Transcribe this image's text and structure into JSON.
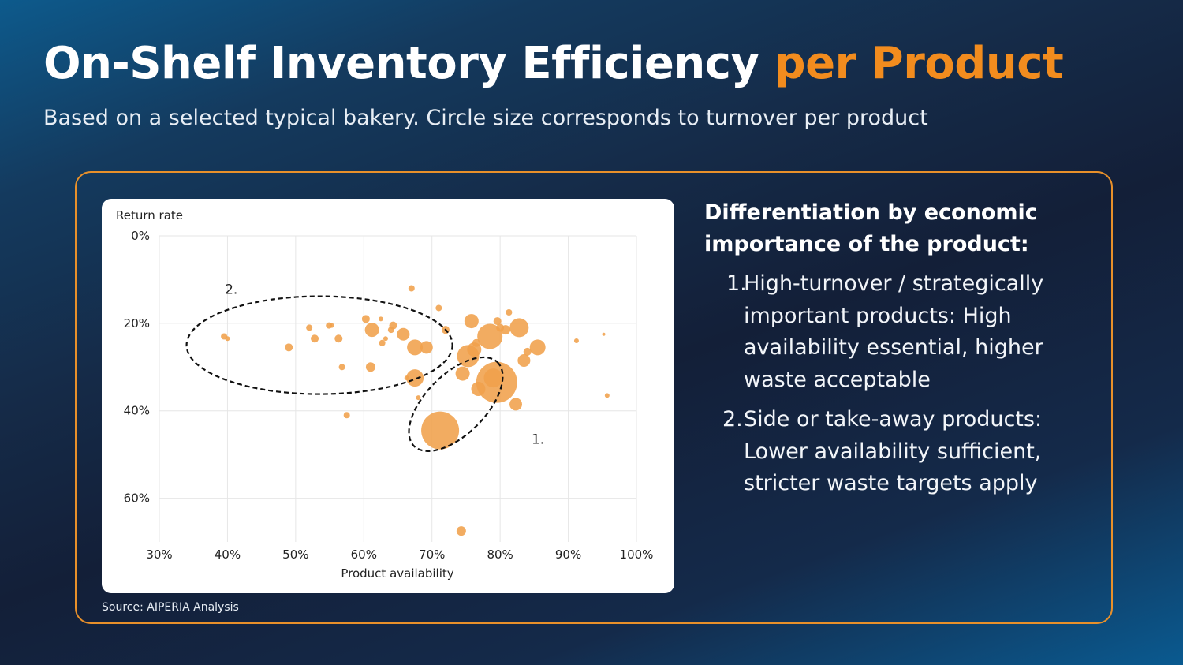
{
  "header": {
    "title_main": "On-Shelf Inventory Efficiency",
    "title_accent": "per Product",
    "subtitle": "Based on a selected typical bakery. Circle size corresponds to turnover per product"
  },
  "colors": {
    "accent": "#f28c1e",
    "bubble": "#f0a04b",
    "frame": "#e8902a"
  },
  "source": "Source: AIPERIA Analysis",
  "panel": {
    "heading": "Differentiation by economic importance of the product:",
    "points": [
      {
        "num": "1.",
        "text": "High-turnover / strategically important products: High availability essential, higher waste acceptable"
      },
      {
        "num": "2.",
        "text": "Side or take-away products: Lower availability sufficient, stricter waste targets apply"
      }
    ]
  },
  "chart_data": {
    "type": "scatter",
    "xlabel": "Product availability",
    "ylabel": "Return rate",
    "xlim": [
      30,
      100
    ],
    "ylim": [
      0,
      70
    ],
    "y_inverted": true,
    "x_ticks": [
      30,
      40,
      50,
      60,
      70,
      80,
      90,
      100
    ],
    "x_tick_labels": [
      "30%",
      "40%",
      "50%",
      "60%",
      "70%",
      "80%",
      "90%",
      "100%"
    ],
    "y_ticks": [
      0,
      20,
      40,
      60
    ],
    "y_tick_labels": [
      "0%",
      "20%",
      "40%",
      "60%"
    ],
    "grid": true,
    "size_encoding": "turnover per product (relative)",
    "points": [
      {
        "x": 39.5,
        "y": 23.0,
        "s": 4
      },
      {
        "x": 40.0,
        "y": 23.5,
        "s": 3
      },
      {
        "x": 49.0,
        "y": 25.5,
        "s": 5
      },
      {
        "x": 52.0,
        "y": 21.0,
        "s": 4
      },
      {
        "x": 52.8,
        "y": 23.5,
        "s": 5
      },
      {
        "x": 54.9,
        "y": 20.5,
        "s": 4
      },
      {
        "x": 55.3,
        "y": 20.5,
        "s": 3
      },
      {
        "x": 56.3,
        "y": 23.5,
        "s": 5
      },
      {
        "x": 56.8,
        "y": 30.0,
        "s": 4
      },
      {
        "x": 57.5,
        "y": 41.0,
        "s": 4
      },
      {
        "x": 60.3,
        "y": 19.0,
        "s": 5
      },
      {
        "x": 61.0,
        "y": 30.0,
        "s": 6
      },
      {
        "x": 61.2,
        "y": 21.5,
        "s": 9
      },
      {
        "x": 62.5,
        "y": 19.0,
        "s": 3
      },
      {
        "x": 62.7,
        "y": 24.5,
        "s": 4
      },
      {
        "x": 63.2,
        "y": 23.5,
        "s": 3
      },
      {
        "x": 64.0,
        "y": 21.5,
        "s": 4
      },
      {
        "x": 64.3,
        "y": 20.5,
        "s": 5
      },
      {
        "x": 65.8,
        "y": 22.5,
        "s": 8
      },
      {
        "x": 66.3,
        "y": 32.5,
        "s": 3
      },
      {
        "x": 67.0,
        "y": 12.0,
        "s": 4
      },
      {
        "x": 67.5,
        "y": 25.5,
        "s": 10
      },
      {
        "x": 67.5,
        "y": 32.5,
        "s": 11
      },
      {
        "x": 68.0,
        "y": 37.0,
        "s": 3
      },
      {
        "x": 69.2,
        "y": 25.5,
        "s": 8
      },
      {
        "x": 71.0,
        "y": 16.5,
        "s": 4
      },
      {
        "x": 71.2,
        "y": 44.5,
        "s": 24
      },
      {
        "x": 72.0,
        "y": 21.5,
        "s": 5
      },
      {
        "x": 74.5,
        "y": 31.5,
        "s": 9
      },
      {
        "x": 75.3,
        "y": 27.5,
        "s": 14
      },
      {
        "x": 75.8,
        "y": 19.5,
        "s": 9
      },
      {
        "x": 76.2,
        "y": 26.0,
        "s": 9
      },
      {
        "x": 76.5,
        "y": 24.5,
        "s": 5
      },
      {
        "x": 76.8,
        "y": 35.0,
        "s": 9
      },
      {
        "x": 78.5,
        "y": 23.0,
        "s": 16
      },
      {
        "x": 79.0,
        "y": 32.5,
        "s": 12
      },
      {
        "x": 79.5,
        "y": 33.5,
        "s": 26
      },
      {
        "x": 79.6,
        "y": 19.5,
        "s": 5
      },
      {
        "x": 80.0,
        "y": 21.0,
        "s": 5
      },
      {
        "x": 80.8,
        "y": 21.5,
        "s": 6
      },
      {
        "x": 81.3,
        "y": 17.5,
        "s": 4
      },
      {
        "x": 82.3,
        "y": 38.5,
        "s": 8
      },
      {
        "x": 82.8,
        "y": 21.0,
        "s": 12
      },
      {
        "x": 83.5,
        "y": 28.5,
        "s": 8
      },
      {
        "x": 84.0,
        "y": 26.5,
        "s": 5
      },
      {
        "x": 85.5,
        "y": 25.5,
        "s": 10
      },
      {
        "x": 91.2,
        "y": 24.0,
        "s": 3
      },
      {
        "x": 95.2,
        "y": 22.5,
        "s": 2
      },
      {
        "x": 95.7,
        "y": 36.5,
        "s": 3
      },
      {
        "x": 74.3,
        "y": 67.5,
        "s": 6
      }
    ],
    "annotations": [
      {
        "label": "1.",
        "shape": "dashed ellipse",
        "center": [
          73.5,
          38.5
        ],
        "radii": [
          9.5,
          10.5
        ],
        "rotation_deg": -45
      },
      {
        "label": "2.",
        "shape": "dashed ellipse",
        "center": [
          53.5,
          25.0
        ],
        "radii": [
          19.5,
          12.0
        ],
        "rotation_deg": 0
      }
    ]
  }
}
